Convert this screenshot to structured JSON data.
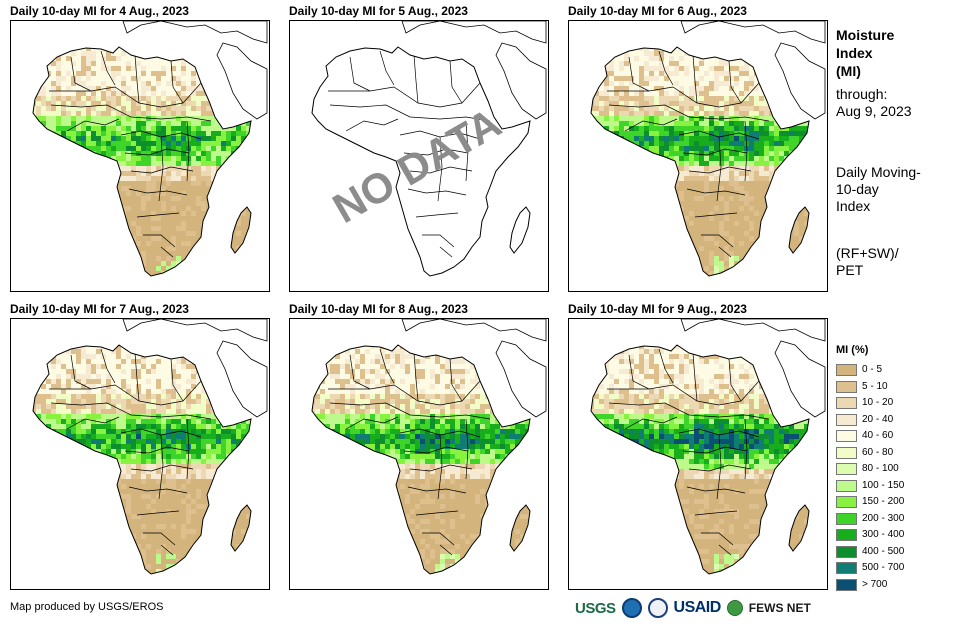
{
  "panels": [
    {
      "title": "Daily 10-day MI for 4 Aug., 2023",
      "status": "data",
      "moisture_level": 0.45
    },
    {
      "title": "Daily 10-day MI for 5 Aug., 2023",
      "status": "no-data",
      "overlay": "NO DATA"
    },
    {
      "title": "Daily 10-day MI for 6 Aug., 2023",
      "status": "data",
      "moisture_level": 0.55
    },
    {
      "title": "Daily 10-day MI for 7 Aug., 2023",
      "status": "data",
      "moisture_level": 0.5
    },
    {
      "title": "Daily 10-day MI for 8 Aug., 2023",
      "status": "data",
      "moisture_level": 0.55
    },
    {
      "title": "Daily 10-day MI for 9 Aug., 2023",
      "status": "data",
      "moisture_level": 0.65
    }
  ],
  "side": {
    "title_lines": [
      "Moisture",
      "Index",
      "(MI)"
    ],
    "through_label": "through:",
    "through_date": "Aug 9, 2023",
    "desc_lines": [
      "Daily Moving-",
      "10-day",
      "Index"
    ],
    "formula_lines": [
      "(RF+SW)/",
      "PET"
    ]
  },
  "legend": {
    "title": "MI (%)",
    "items": [
      {
        "label": "0 - 5",
        "color": "#d2b47c"
      },
      {
        "label": "5 - 10",
        "color": "#dec08e"
      },
      {
        "label": "10 - 20",
        "color": "#ecd8b2"
      },
      {
        "label": "20 - 40",
        "color": "#f6ead3"
      },
      {
        "label": "40 - 60",
        "color": "#fdfbe3"
      },
      {
        "label": "60 - 80",
        "color": "#f2fcc6"
      },
      {
        "label": "80 - 100",
        "color": "#dcfcb0"
      },
      {
        "label": "100 - 150",
        "color": "#bef98c"
      },
      {
        "label": "150 - 200",
        "color": "#87f23f"
      },
      {
        "label": "200 - 300",
        "color": "#3fd42a"
      },
      {
        "label": "300 - 400",
        "color": "#17ad1c"
      },
      {
        "label": "400 - 500",
        "color": "#0d8f2f"
      },
      {
        "label": "500 - 700",
        "color": "#0f7d73"
      },
      {
        "label": "> 700",
        "color": "#0b4f73"
      }
    ]
  },
  "credit": "Map produced by USGS/EROS",
  "logos": {
    "usgs": "USGS",
    "noaa": "noaa-emblem",
    "seal": "usda-seal",
    "usaid": "USAID",
    "fews": "FEWS NET"
  }
}
